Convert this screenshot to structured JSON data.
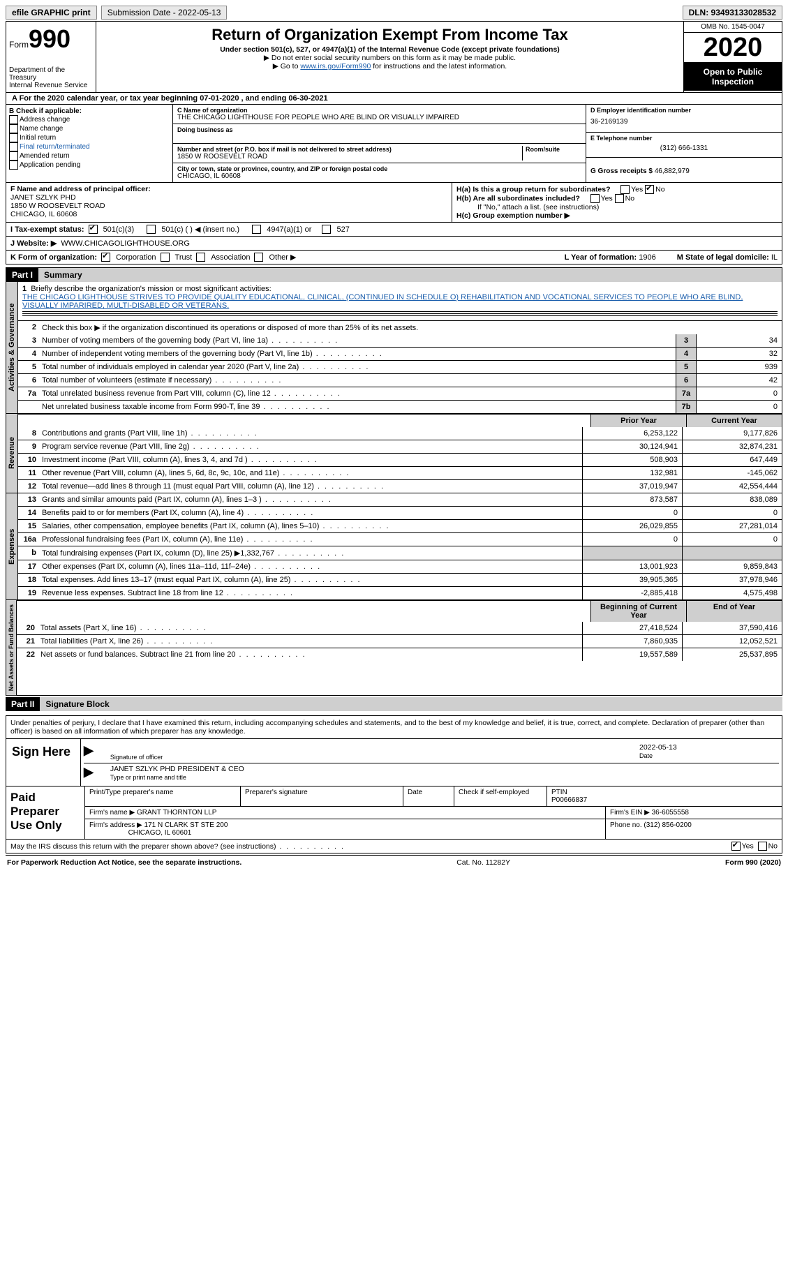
{
  "topbar": {
    "efile": "efile GRAPHIC print",
    "submission_label": "Submission Date - 2022-05-13",
    "dln": "DLN: 93493133028532"
  },
  "header": {
    "form_word": "Form",
    "form_num": "990",
    "dept": "Department of the Treasury",
    "irs": "Internal Revenue Service",
    "title": "Return of Organization Exempt From Income Tax",
    "sub1": "Under section 501(c), 527, or 4947(a)(1) of the Internal Revenue Code (except private foundations)",
    "sub2": "▶ Do not enter social security numbers on this form as it may be made public.",
    "sub3_pre": "▶ Go to ",
    "sub3_link": "www.irs.gov/Form990",
    "sub3_post": " for instructions and the latest information.",
    "omb": "OMB No. 1545-0047",
    "year": "2020",
    "otp": "Open to Public Inspection"
  },
  "period": "A For the 2020 calendar year, or tax year beginning 07-01-2020   , and ending 06-30-2021",
  "secB": {
    "label": "B Check if applicable:",
    "items": [
      "Address change",
      "Name change",
      "Initial return",
      "Final return/terminated",
      "Amended return",
      "Application pending"
    ]
  },
  "secC": {
    "name_label": "C Name of organization",
    "name": "THE CHICAGO LIGHTHOUSE FOR PEOPLE WHO ARE BLIND OR VISUALLY IMPAIRED",
    "dba_label": "Doing business as",
    "addr_label": "Number and street (or P.O. box if mail is not delivered to street address)",
    "room_label": "Room/suite",
    "addr": "1850 W ROOSEVELT ROAD",
    "city_label": "City or town, state or province, country, and ZIP or foreign postal code",
    "city": "CHICAGO, IL  60608"
  },
  "secD": {
    "label": "D Employer identification number",
    "ein": "36-2169139"
  },
  "secE": {
    "label": "E Telephone number",
    "phone": "(312) 666-1331"
  },
  "secG": {
    "label": "G Gross receipts $",
    "amt": "46,882,979"
  },
  "secF": {
    "label": "F Name and address of principal officer:",
    "name": "JANET SZLYK PHD",
    "addr1": "1850 W ROOSEVELT ROAD",
    "addr2": "CHICAGO, IL  60608"
  },
  "secH": {
    "a": "H(a)  Is this a group return for subordinates?",
    "a_yes": "Yes",
    "a_no": "No",
    "b": "H(b)  Are all subordinates included?",
    "b_note": "If \"No,\" attach a list. (see instructions)",
    "c": "H(c)  Group exemption number ▶"
  },
  "secI": {
    "label": "I   Tax-exempt status:",
    "opts": [
      "501(c)(3)",
      "501(c) (   ) ◀ (insert no.)",
      "4947(a)(1) or",
      "527"
    ]
  },
  "secJ": {
    "label": "J   Website: ▶",
    "url": "WWW.CHICAGOLIGHTHOUSE.ORG"
  },
  "secK": {
    "label": "K Form of organization:",
    "opts": [
      "Corporation",
      "Trust",
      "Association",
      "Other ▶"
    ]
  },
  "secL": {
    "label": "L Year of formation:",
    "val": "1906"
  },
  "secM": {
    "label": "M State of legal domicile:",
    "val": "IL"
  },
  "part1": {
    "hdr": "Part I",
    "title": "Summary",
    "q1": "Briefly describe the organization's mission or most significant activities:",
    "mission": "THE CHICAGO LIGHTHOUSE STRIVES TO PROVIDE QUALITY EDUCATIONAL, CLINICAL, (CONTINUED IN SCHEDULE O) REHABILITATION AND VOCATIONAL SERVICES TO PEOPLE WHO ARE BLIND, VISUALLY IMPARIRED, MULTI-DISABLED OR VETERANS.",
    "q2": "Check this box ▶      if the organization discontinued its operations or disposed of more than 25% of its net assets.",
    "rows_gov": [
      {
        "n": "3",
        "t": "Number of voting members of the governing body (Part VI, line 1a)",
        "box": "3",
        "v": "34"
      },
      {
        "n": "4",
        "t": "Number of independent voting members of the governing body (Part VI, line 1b)",
        "box": "4",
        "v": "32"
      },
      {
        "n": "5",
        "t": "Total number of individuals employed in calendar year 2020 (Part V, line 2a)",
        "box": "5",
        "v": "939"
      },
      {
        "n": "6",
        "t": "Total number of volunteers (estimate if necessary)",
        "box": "6",
        "v": "42"
      },
      {
        "n": "7a",
        "t": "Total unrelated business revenue from Part VIII, column (C), line 12",
        "box": "7a",
        "v": "0"
      },
      {
        "n": "",
        "t": "Net unrelated business taxable income from Form 990-T, line 39",
        "box": "7b",
        "v": "0"
      }
    ],
    "col_prior": "Prior Year",
    "col_curr": "Current Year",
    "rev": [
      {
        "n": "8",
        "t": "Contributions and grants (Part VIII, line 1h)",
        "p": "6,253,122",
        "c": "9,177,826"
      },
      {
        "n": "9",
        "t": "Program service revenue (Part VIII, line 2g)",
        "p": "30,124,941",
        "c": "32,874,231"
      },
      {
        "n": "10",
        "t": "Investment income (Part VIII, column (A), lines 3, 4, and 7d )",
        "p": "508,903",
        "c": "647,449"
      },
      {
        "n": "11",
        "t": "Other revenue (Part VIII, column (A), lines 5, 6d, 8c, 9c, 10c, and 11e)",
        "p": "132,981",
        "c": "-145,062"
      },
      {
        "n": "12",
        "t": "Total revenue—add lines 8 through 11 (must equal Part VIII, column (A), line 12)",
        "p": "37,019,947",
        "c": "42,554,444"
      }
    ],
    "exp": [
      {
        "n": "13",
        "t": "Grants and similar amounts paid (Part IX, column (A), lines 1–3 )",
        "p": "873,587",
        "c": "838,089"
      },
      {
        "n": "14",
        "t": "Benefits paid to or for members (Part IX, column (A), line 4)",
        "p": "0",
        "c": "0"
      },
      {
        "n": "15",
        "t": "Salaries, other compensation, employee benefits (Part IX, column (A), lines 5–10)",
        "p": "26,029,855",
        "c": "27,281,014"
      },
      {
        "n": "16a",
        "t": "Professional fundraising fees (Part IX, column (A), line 11e)",
        "p": "0",
        "c": "0"
      },
      {
        "n": "b",
        "t": "Total fundraising expenses (Part IX, column (D), line 25) ▶1,332,767",
        "p": "",
        "c": "",
        "grey": true
      },
      {
        "n": "17",
        "t": "Other expenses (Part IX, column (A), lines 11a–11d, 11f–24e)",
        "p": "13,001,923",
        "c": "9,859,843"
      },
      {
        "n": "18",
        "t": "Total expenses. Add lines 13–17 (must equal Part IX, column (A), line 25)",
        "p": "39,905,365",
        "c": "37,978,946"
      },
      {
        "n": "19",
        "t": "Revenue less expenses. Subtract line 18 from line 12",
        "p": "-2,885,418",
        "c": "4,575,498"
      }
    ],
    "col_begin": "Beginning of Current Year",
    "col_end": "End of Year",
    "net": [
      {
        "n": "20",
        "t": "Total assets (Part X, line 16)",
        "p": "27,418,524",
        "c": "37,590,416"
      },
      {
        "n": "21",
        "t": "Total liabilities (Part X, line 26)",
        "p": "7,860,935",
        "c": "12,052,521"
      },
      {
        "n": "22",
        "t": "Net assets or fund balances. Subtract line 21 from line 20",
        "p": "19,557,589",
        "c": "25,537,895"
      }
    ],
    "gov_label": "Activities & Governance",
    "rev_label": "Revenue",
    "exp_label": "Expenses",
    "net_label": "Net Assets or Fund Balances"
  },
  "part2": {
    "hdr": "Part II",
    "title": "Signature Block",
    "penalty": "Under penalties of perjury, I declare that I have examined this return, including accompanying schedules and statements, and to the best of my knowledge and belief, it is true, correct, and complete. Declaration of preparer (other than officer) is based on all information of which preparer has any knowledge.",
    "sign_here": "Sign Here",
    "sig_of_officer": "Signature of officer",
    "date_label": "Date",
    "sig_date": "2022-05-13",
    "officer_name": "JANET SZLYK PHD  PRESIDENT & CEO",
    "type_label": "Type or print name and title",
    "paid_label": "Paid Preparer Use Only",
    "prep_name_label": "Print/Type preparer's name",
    "prep_sig_label": "Preparer's signature",
    "check_if": "Check       if self-employed",
    "ptin_label": "PTIN",
    "ptin": "P00666837",
    "firm_name_label": "Firm's name    ▶",
    "firm_name": "GRANT THORNTON LLP",
    "firm_ein_label": "Firm's EIN ▶",
    "firm_ein": "36-6055558",
    "firm_addr_label": "Firm's address ▶",
    "firm_addr": "171 N CLARK ST STE 200",
    "firm_city": "CHICAGO, IL  60601",
    "phone_label": "Phone no.",
    "phone": "(312) 856-0200",
    "may_irs": "May the IRS discuss this return with the preparer shown above? (see instructions)",
    "yes": "Yes",
    "no": "No"
  },
  "footer": {
    "left": "For Paperwork Reduction Act Notice, see the separate instructions.",
    "mid": "Cat. No. 11282Y",
    "right": "Form 990 (2020)"
  }
}
